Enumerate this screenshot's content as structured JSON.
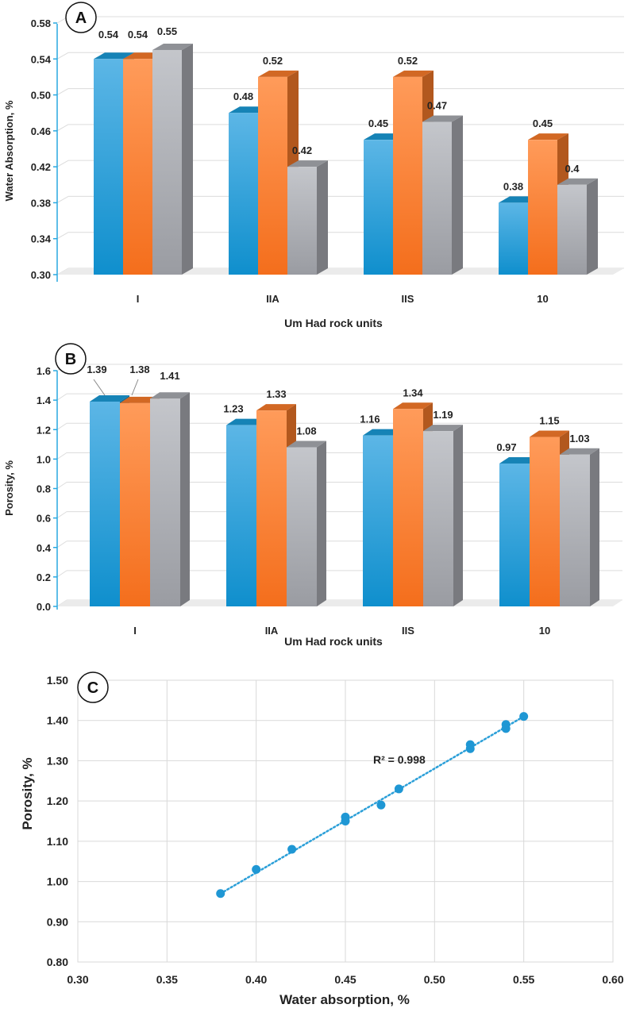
{
  "colors": {
    "blue": "#1a9ad6",
    "orange": "#f77a2a",
    "gray": "#a8aab0",
    "axis": "#29a8e0",
    "grid": "#d9d9d9",
    "text": "#222222"
  },
  "chart_data": [
    {
      "panel": "A",
      "type": "bar",
      "categories": [
        "I",
        "IIA",
        "IIS",
        "10"
      ],
      "series": [
        {
          "name": "series-1",
          "color": "blue",
          "values": [
            0.54,
            0.48,
            0.45,
            0.38
          ],
          "labels": [
            "0.54",
            "0.48",
            "0.45",
            "0.38"
          ]
        },
        {
          "name": "series-2",
          "color": "orange",
          "values": [
            0.54,
            0.52,
            0.52,
            0.45
          ],
          "labels": [
            "0.54",
            "0.52",
            "0.52",
            "0.45"
          ]
        },
        {
          "name": "series-3",
          "color": "gray",
          "values": [
            0.55,
            0.42,
            0.47,
            0.4
          ],
          "labels": [
            "0.55",
            "0.42",
            "0.47",
            "0.4"
          ]
        }
      ],
      "xlabel": "Um Had rock units",
      "ylabel": "Water Absorption, %",
      "ylim": [
        0.3,
        0.58
      ],
      "yticks": [
        "0.30",
        "0.34",
        "0.38",
        "0.42",
        "0.46",
        "0.50",
        "0.54",
        "0.58"
      ]
    },
    {
      "panel": "B",
      "type": "bar",
      "categories": [
        "I",
        "IIA",
        "IIS",
        "10"
      ],
      "series": [
        {
          "name": "series-1",
          "color": "blue",
          "values": [
            1.39,
            1.23,
            1.16,
            0.97
          ],
          "labels": [
            "1.39",
            "1.23",
            "1.16",
            "0.97"
          ]
        },
        {
          "name": "series-2",
          "color": "orange",
          "values": [
            1.38,
            1.33,
            1.34,
            1.15
          ],
          "labels": [
            "1.38",
            "1.33",
            "1.34",
            "1.15"
          ]
        },
        {
          "name": "series-3",
          "color": "gray",
          "values": [
            1.41,
            1.08,
            1.19,
            1.03
          ],
          "labels": [
            "1.41",
            "1.08",
            "1.19",
            "1.03"
          ]
        }
      ],
      "xlabel": "Um Had rock units",
      "ylabel": "Porosity, %",
      "ylim": [
        0.0,
        1.6
      ],
      "yticks": [
        "0.0",
        "0.2",
        "0.4",
        "0.6",
        "0.8",
        "1.0",
        "1.2",
        "1.4",
        "1.6"
      ]
    },
    {
      "panel": "C",
      "type": "scatter",
      "x": [
        0.54,
        0.54,
        0.55,
        0.48,
        0.52,
        0.42,
        0.45,
        0.52,
        0.47,
        0.38,
        0.45,
        0.4
      ],
      "y": [
        1.39,
        1.38,
        1.41,
        1.23,
        1.33,
        1.08,
        1.16,
        1.34,
        1.19,
        0.97,
        1.15,
        1.03
      ],
      "trendline": {
        "from": [
          0.38,
          0.97
        ],
        "to": [
          0.55,
          1.41
        ],
        "style": "dotted"
      },
      "annotation": "R² = 0.998",
      "xlabel": "Water absorption, %",
      "ylabel": "Porosity, %",
      "xlim": [
        0.3,
        0.6
      ],
      "ylim": [
        0.8,
        1.5
      ],
      "xticks": [
        "0.30",
        "0.35",
        "0.40",
        "0.45",
        "0.50",
        "0.55",
        "0.60"
      ],
      "yticks": [
        "0.80",
        "0.90",
        "1.00",
        "1.10",
        "1.20",
        "1.30",
        "1.40",
        "1.50"
      ],
      "grid": true
    }
  ]
}
